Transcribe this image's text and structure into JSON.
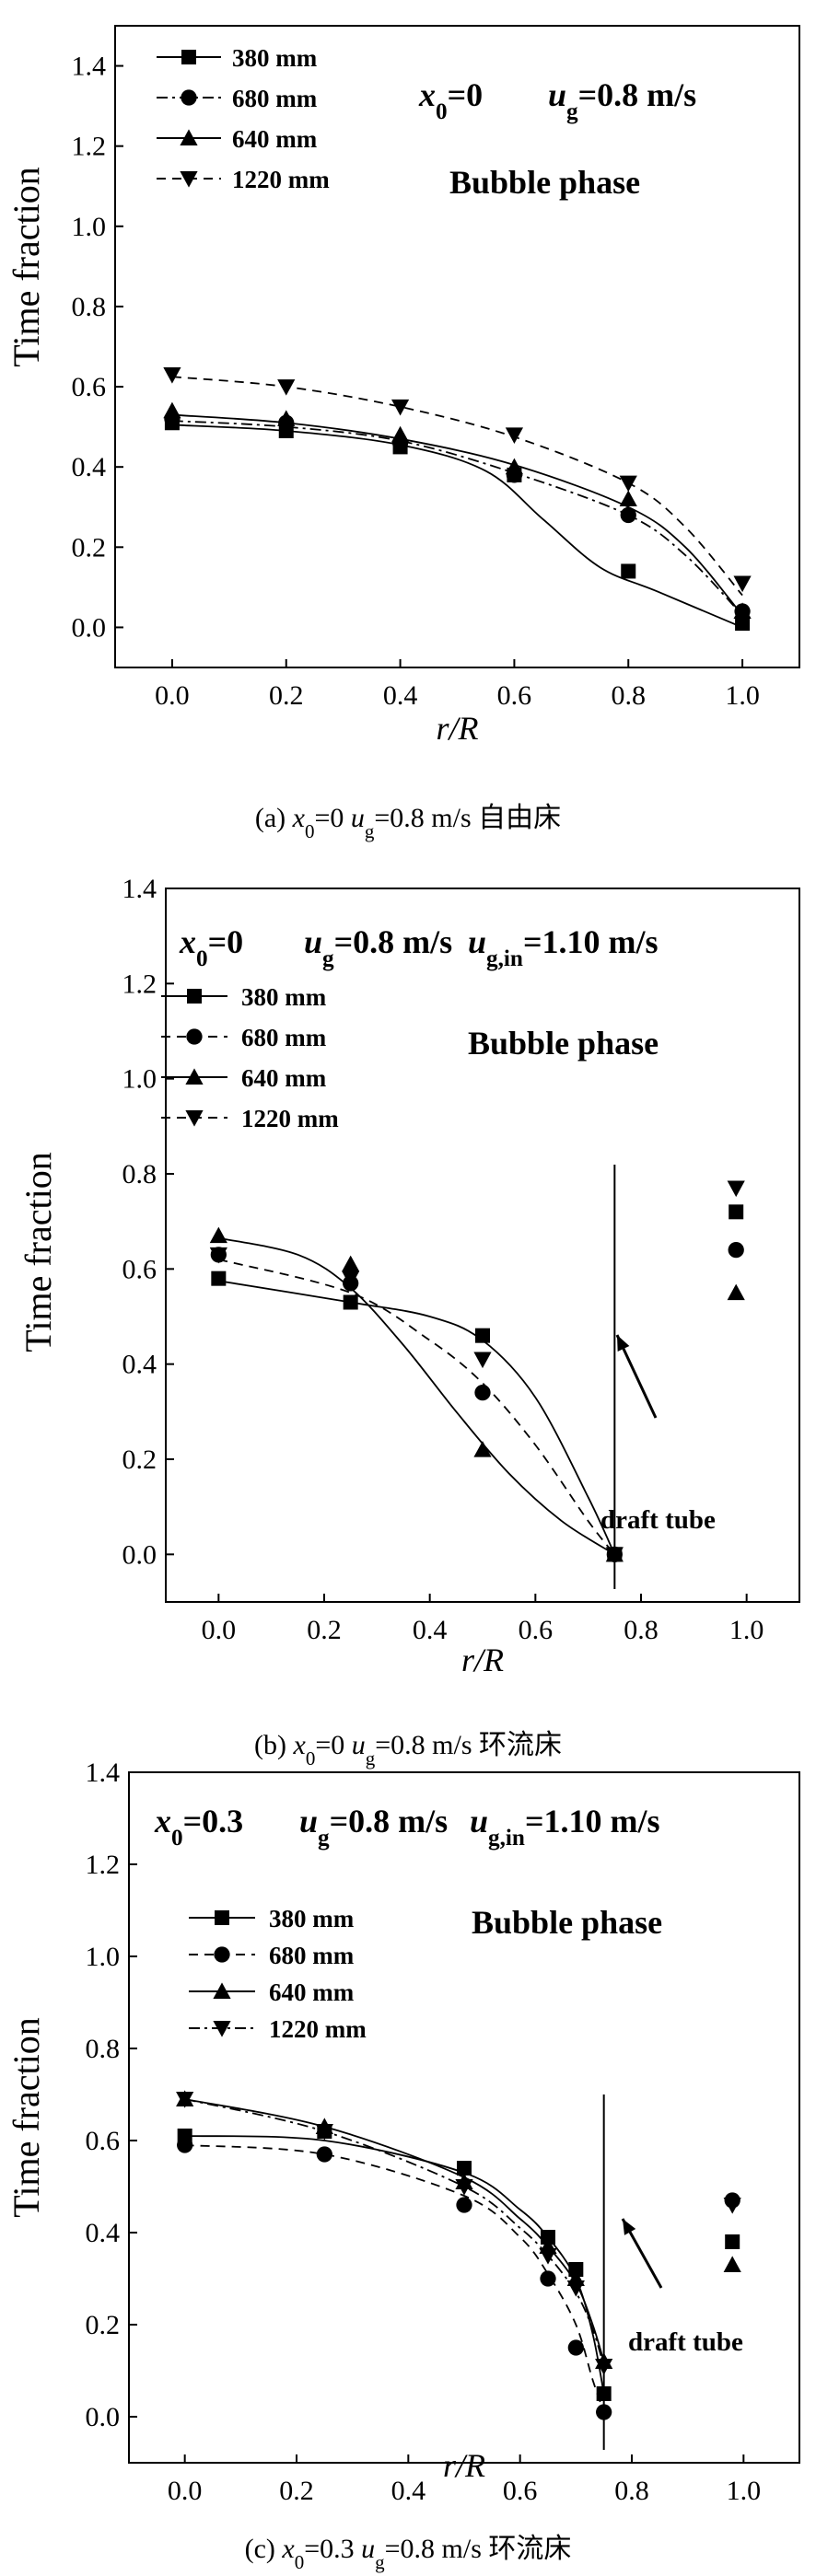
{
  "chart_data": [
    {
      "type": "line",
      "panel": "a",
      "caption": "(a) x₀=0 u_g=0.8 m/s 自由床",
      "caption_parts": [
        "(a) ",
        "x",
        "0",
        "=0 ",
        "u",
        "g",
        "=0.8 m/s 自由床"
      ],
      "xlabel": "r/R",
      "ylabel": "Time fraction",
      "xlim": [
        -0.1,
        1.1
      ],
      "ylim": [
        -0.1,
        1.5
      ],
      "xticks": [
        "0.0",
        "0.2",
        "0.4",
        "0.6",
        "0.8",
        "1.0"
      ],
      "yticks": [
        "0.0",
        "0.2",
        "0.4",
        "0.6",
        "0.8",
        "1.0",
        "1.2",
        "1.4"
      ],
      "annotation_parts": [
        "x",
        "0",
        "=0",
        "u",
        "g",
        "=0.8 m/s"
      ],
      "phase_label": "Bubble phase",
      "series": [
        {
          "name": "380 mm",
          "marker": "square",
          "dash": "solid",
          "x": [
            0,
            0.2,
            0.4,
            0.6,
            0.8,
            1.0
          ],
          "values": [
            0.51,
            0.49,
            0.45,
            0.38,
            0.14,
            0.01
          ],
          "curve": [
            [
              0,
              0.505
            ],
            [
              0.2,
              0.49
            ],
            [
              0.4,
              0.455
            ],
            [
              0.55,
              0.39
            ],
            [
              0.65,
              0.27
            ],
            [
              0.75,
              0.15
            ],
            [
              0.85,
              0.09
            ],
            [
              1.0,
              0.0
            ]
          ]
        },
        {
          "name": "680 mm",
          "marker": "circle",
          "dash": "dash-dot",
          "x": [
            0,
            0.2,
            0.4,
            0.6,
            0.8,
            1.0
          ],
          "values": [
            0.52,
            0.51,
            0.46,
            0.38,
            0.28,
            0.04
          ],
          "curve": [
            [
              0,
              0.515
            ],
            [
              0.2,
              0.5
            ],
            [
              0.4,
              0.465
            ],
            [
              0.6,
              0.385
            ],
            [
              0.8,
              0.28
            ],
            [
              0.9,
              0.18
            ],
            [
              1.0,
              0.03
            ]
          ]
        },
        {
          "name": "640 mm",
          "marker": "triangle-up",
          "dash": "solid",
          "x": [
            0,
            0.2,
            0.4,
            0.6,
            0.8,
            1.0
          ],
          "values": [
            0.54,
            0.52,
            0.48,
            0.4,
            0.32,
            0.04
          ],
          "curve": [
            [
              0,
              0.53
            ],
            [
              0.2,
              0.51
            ],
            [
              0.4,
              0.47
            ],
            [
              0.6,
              0.405
            ],
            [
              0.8,
              0.3
            ],
            [
              0.9,
              0.2
            ],
            [
              1.0,
              0.03
            ]
          ]
        },
        {
          "name": "1220 mm",
          "marker": "triangle-down",
          "dash": "dashed",
          "x": [
            0,
            0.2,
            0.4,
            0.6,
            0.8,
            1.0
          ],
          "values": [
            0.63,
            0.6,
            0.55,
            0.48,
            0.36,
            0.11
          ],
          "curve": [
            [
              0,
              0.625
            ],
            [
              0.2,
              0.6
            ],
            [
              0.4,
              0.55
            ],
            [
              0.6,
              0.475
            ],
            [
              0.8,
              0.36
            ],
            [
              0.9,
              0.25
            ],
            [
              1.0,
              0.08
            ]
          ]
        }
      ]
    },
    {
      "type": "line",
      "panel": "b",
      "caption": "(b) x₀=0 u_g=0.8 m/s 环流床",
      "caption_parts": [
        "(b) ",
        "x",
        "0",
        "=0 ",
        "u",
        "g",
        "=0.8 m/s 环流床"
      ],
      "xlabel": "r/R",
      "ylabel": "Time fraction",
      "xlim": [
        -0.1,
        1.1
      ],
      "ylim": [
        -0.1,
        1.4
      ],
      "xticks": [
        "0.0",
        "0.2",
        "0.4",
        "0.6",
        "0.8",
        "1.0"
      ],
      "yticks": [
        "0.0",
        "0.2",
        "0.4",
        "0.6",
        "0.8",
        "1.0",
        "1.2",
        "1.4"
      ],
      "annotation_parts": [
        "x",
        "0",
        "=0",
        "u",
        "g",
        "=0.8 m/s",
        "u",
        "g,in",
        "=1.10 m/s"
      ],
      "phase_label": "Bubble phase",
      "draft_tube_label": "draft tube",
      "draft_tube_x": 0.75,
      "series": [
        {
          "name": "380 mm",
          "marker": "square",
          "dash": "solid",
          "x": [
            0,
            0.25,
            0.5,
            0.75,
            0.98
          ],
          "values": [
            0.58,
            0.53,
            0.46,
            0.0,
            0.72
          ],
          "curve": [
            [
              0,
              0.575
            ],
            [
              0.25,
              0.53
            ],
            [
              0.4,
              0.5
            ],
            [
              0.5,
              0.45
            ],
            [
              0.6,
              0.33
            ],
            [
              0.7,
              0.12
            ],
            [
              0.75,
              0.0
            ]
          ]
        },
        {
          "name": "680 mm",
          "marker": "circle",
          "dash": "dashed",
          "x": [
            0,
            0.25,
            0.5,
            0.75,
            0.98
          ],
          "values": [
            0.63,
            0.57,
            0.34,
            0.0,
            0.64
          ],
          "curve": [
            [
              0,
              0.62
            ],
            [
              0.25,
              0.55
            ],
            [
              0.4,
              0.45
            ],
            [
              0.5,
              0.36
            ],
            [
              0.6,
              0.23
            ],
            [
              0.7,
              0.07
            ],
            [
              0.75,
              0.0
            ]
          ]
        },
        {
          "name": "640 mm",
          "marker": "triangle-up",
          "dash": "solid",
          "x": [
            0,
            0.25,
            0.5,
            0.75,
            0.98
          ],
          "values": [
            0.67,
            0.61,
            0.22,
            0.0,
            0.55
          ],
          "curve": [
            [
              0,
              0.665
            ],
            [
              0.15,
              0.63
            ],
            [
              0.25,
              0.56
            ],
            [
              0.35,
              0.44
            ],
            [
              0.45,
              0.3
            ],
            [
              0.55,
              0.17
            ],
            [
              0.65,
              0.07
            ],
            [
              0.75,
              0.0
            ]
          ]
        },
        {
          "name": "1220 mm",
          "marker": "triangle-down",
          "dash": "dashed",
          "x": [
            0,
            0.25,
            0.5,
            0.75,
            0.98
          ],
          "values": [
            0.63,
            0.58,
            0.41,
            0.0,
            0.77
          ],
          "curve": []
        }
      ]
    },
    {
      "type": "line",
      "panel": "c",
      "caption": "(c) x₀=0.3 u_g=0.8 m/s 环流床",
      "caption_parts": [
        "(c) ",
        "x",
        "0",
        "=0.3 ",
        "u",
        "g",
        "=0.8 m/s 环流床"
      ],
      "xlabel": "r/R",
      "ylabel": "Time fraction",
      "xlim": [
        -0.1,
        1.1
      ],
      "ylim": [
        -0.1,
        1.4
      ],
      "xticks": [
        "0.0",
        "0.2",
        "0.4",
        "0.6",
        "0.8",
        "1.0"
      ],
      "yticks": [
        "0.0",
        "0.2",
        "0.4",
        "0.6",
        "0.8",
        "1.0",
        "1.2",
        "1.4"
      ],
      "annotation_parts": [
        "x",
        "0",
        "=0.3",
        "u",
        "g",
        "=0.8 m/s",
        "u",
        "g,in",
        "=1.10 m/s"
      ],
      "phase_label": "Bubble phase",
      "draft_tube_label": "draft tube",
      "draft_tube_x": 0.75,
      "series": [
        {
          "name": "380 mm",
          "marker": "square",
          "dash": "solid",
          "x": [
            0,
            0.25,
            0.5,
            0.65,
            0.7,
            0.75,
            0.98
          ],
          "values": [
            0.61,
            0.62,
            0.54,
            0.39,
            0.32,
            0.05,
            0.38
          ],
          "curve": [
            [
              0,
              0.61
            ],
            [
              0.25,
              0.6
            ],
            [
              0.5,
              0.53
            ],
            [
              0.6,
              0.45
            ],
            [
              0.65,
              0.39
            ],
            [
              0.7,
              0.3
            ],
            [
              0.73,
              0.18
            ],
            [
              0.75,
              0.05
            ]
          ]
        },
        {
          "name": "680 mm",
          "marker": "circle",
          "dash": "dashed",
          "x": [
            0,
            0.25,
            0.5,
            0.65,
            0.7,
            0.75,
            0.98
          ],
          "values": [
            0.59,
            0.57,
            0.46,
            0.3,
            0.15,
            0.01,
            0.47
          ],
          "curve": [
            [
              0,
              0.59
            ],
            [
              0.25,
              0.57
            ],
            [
              0.5,
              0.48
            ],
            [
              0.6,
              0.39
            ],
            [
              0.65,
              0.31
            ],
            [
              0.7,
              0.2
            ],
            [
              0.73,
              0.08
            ],
            [
              0.75,
              0.01
            ]
          ]
        },
        {
          "name": "640 mm",
          "marker": "triangle-up",
          "dash": "solid",
          "x": [
            0,
            0.25,
            0.5,
            0.65,
            0.7,
            0.75,
            0.98
          ],
          "values": [
            0.69,
            0.63,
            0.51,
            0.37,
            0.3,
            0.12,
            0.33
          ],
          "curve": [
            [
              0,
              0.69
            ],
            [
              0.25,
              0.63
            ],
            [
              0.5,
              0.52
            ],
            [
              0.6,
              0.43
            ],
            [
              0.65,
              0.37
            ],
            [
              0.7,
              0.29
            ],
            [
              0.73,
              0.2
            ],
            [
              0.75,
              0.12
            ]
          ]
        },
        {
          "name": "1220 mm",
          "marker": "triangle-down",
          "dash": "dash-dot",
          "x": [
            0,
            0.25,
            0.5,
            0.65,
            0.7,
            0.75,
            0.98
          ],
          "values": [
            0.69,
            0.62,
            0.5,
            0.35,
            0.28,
            0.11,
            0.46
          ],
          "curve": [
            [
              0,
              0.69
            ],
            [
              0.25,
              0.62
            ],
            [
              0.5,
              0.5
            ],
            [
              0.6,
              0.41
            ],
            [
              0.65,
              0.35
            ],
            [
              0.7,
              0.27
            ],
            [
              0.73,
              0.19
            ],
            [
              0.75,
              0.11
            ]
          ]
        }
      ]
    }
  ]
}
